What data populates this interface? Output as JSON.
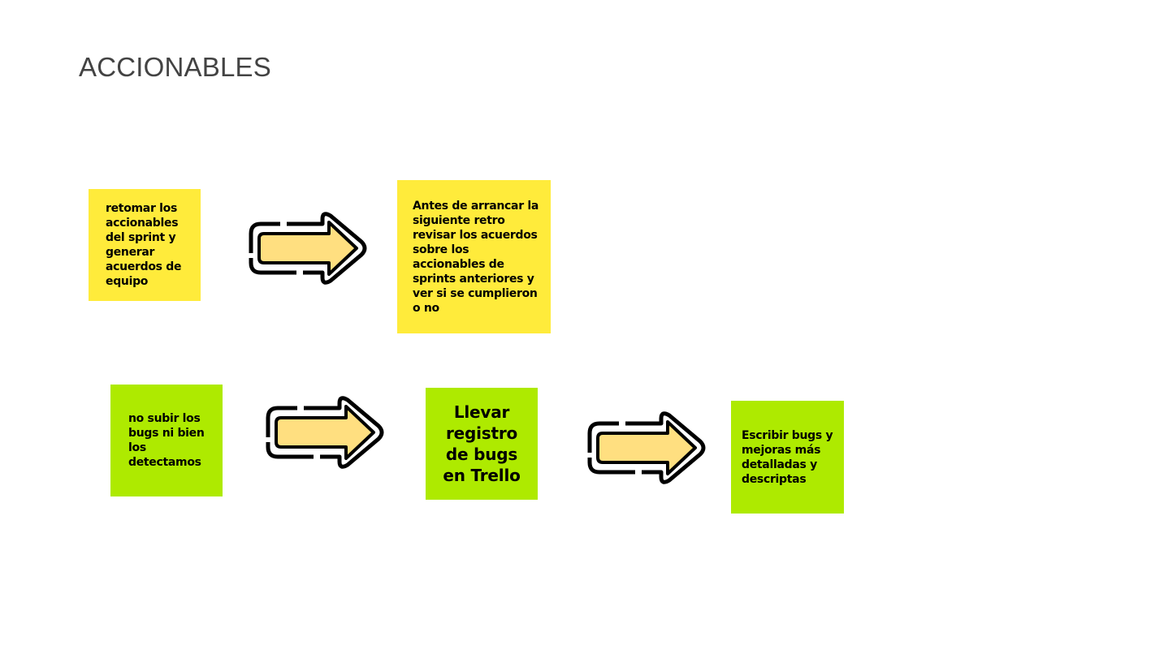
{
  "title": "ACCIONABLES",
  "colors": {
    "yellow_note": "#ffeb3b",
    "green_note": "#aeea00",
    "arrow_fill": "#ffdf80",
    "arrow_outline": "#000000",
    "title_text": "#434343"
  },
  "icons": [
    "arrow-right-icon"
  ],
  "rows": [
    {
      "source": "retomar los accionables del sprint y generar acuerdos de equipo",
      "result": "Antes de arrancar la siguiente retro revisar los acuerdos sobre los accionables de sprints anteriores y ver si se cumplieron o no"
    },
    {
      "source": "no subir los bugs ni bien los detectamos",
      "action": "Llevar registro de bugs en Trello",
      "result": "Escribir bugs y mejoras más detalladas y descriptas"
    }
  ]
}
